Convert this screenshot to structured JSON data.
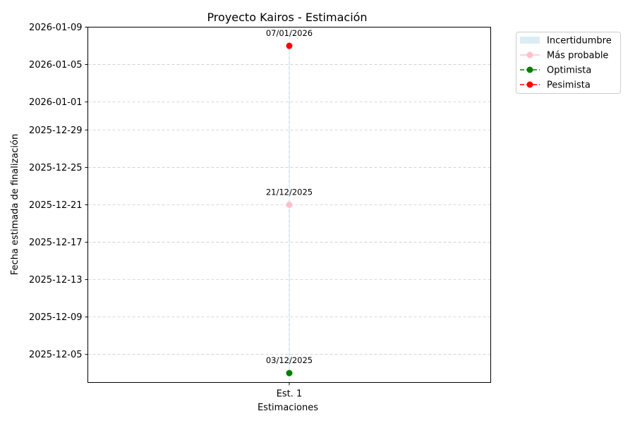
{
  "chart_data": {
    "type": "line",
    "title": "Proyecto Kairos - Estimación",
    "xlabel": "Estimaciones",
    "ylabel": "Fecha estimada de finalización",
    "categories": [
      "Est. 1"
    ],
    "y_is_date": true,
    "ylim": [
      "2025-12-02",
      "2026-01-09"
    ],
    "yticks": [
      "2025-12-05",
      "2025-12-09",
      "2025-12-13",
      "2025-12-17",
      "2025-12-21",
      "2025-12-25",
      "2025-12-29",
      "2026-01-01",
      "2026-01-05",
      "2026-01-09"
    ],
    "grid": true,
    "legend_position": "outside-top-right",
    "uncertainty": {
      "name": "Incertidumbre",
      "lower": [
        "2025-12-03"
      ],
      "upper": [
        "2026-01-07"
      ],
      "color": "#add8e6"
    },
    "series": [
      {
        "name": "Más probable",
        "values": [
          "2025-12-21"
        ],
        "labels": [
          "21/12/2025"
        ],
        "color": "#ffc0cb",
        "linestyle": "solid"
      },
      {
        "name": "Optimista",
        "values": [
          "2025-12-03"
        ],
        "labels": [
          "03/12/2025"
        ],
        "color": "#008000",
        "linestyle": "dashed"
      },
      {
        "name": "Pesimista",
        "values": [
          "2026-01-07"
        ],
        "labels": [
          "07/01/2026"
        ],
        "color": "#ff0000",
        "linestyle": "dashed"
      }
    ]
  }
}
